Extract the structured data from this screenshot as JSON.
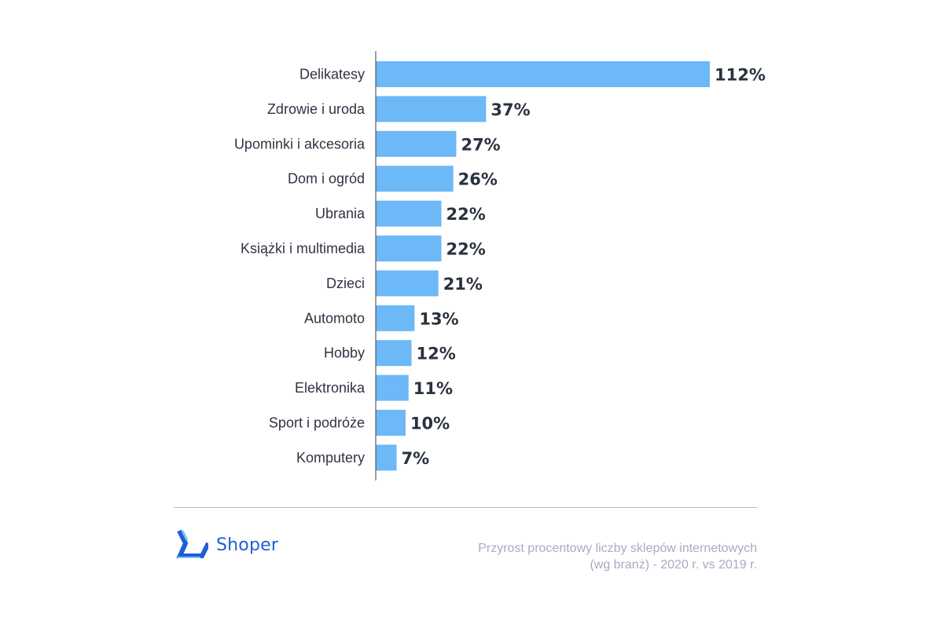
{
  "chart_data": {
    "type": "bar",
    "orientation": "horizontal",
    "categories": [
      "Delikatesy",
      "Zdrowie i uroda",
      "Upominki i akcesoria",
      "Dom i ogród",
      "Ubrania",
      "Książki i multimedia",
      "Dzieci",
      "Automoto",
      "Hobby",
      "Elektronika",
      "Sport i podróże",
      "Komputery"
    ],
    "values": [
      112,
      37,
      27,
      26,
      22,
      22,
      21,
      13,
      12,
      11,
      10,
      7
    ],
    "value_labels": [
      "112%",
      "37%",
      "27%",
      "26%",
      "22%",
      "22%",
      "21%",
      "13%",
      "12%",
      "11%",
      "10%",
      "7%"
    ],
    "bar_color": "#6db8f7",
    "value_label_color": "#2a3140",
    "category_label_color": "#2e3442",
    "xlim": [
      0,
      112
    ],
    "grid": false,
    "legend": "none"
  },
  "footer": {
    "brand_name": "Shoper",
    "brand_color": "#1f5fd6",
    "caption_line1": "Przyrost procentowy liczby sklepów internetowych",
    "caption_line2": "(wg branż) - 2020 r. vs 2019 r."
  }
}
